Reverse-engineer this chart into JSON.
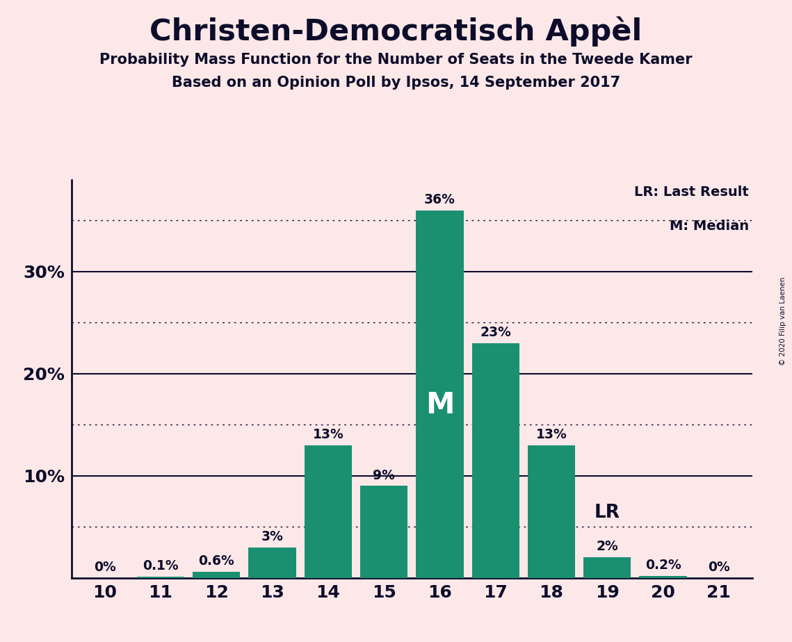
{
  "title": "Christen-Democratisch Appèl",
  "subtitle1": "Probability Mass Function for the Number of Seats in the Tweede Kamer",
  "subtitle2": "Based on an Opinion Poll by Ipsos, 14 September 2017",
  "copyright": "© 2020 Filip van Laenen",
  "seats": [
    10,
    11,
    12,
    13,
    14,
    15,
    16,
    17,
    18,
    19,
    20,
    21
  ],
  "probabilities": [
    0.0,
    0.1,
    0.6,
    3.0,
    13.0,
    9.0,
    36.0,
    23.0,
    13.0,
    2.0,
    0.2,
    0.0
  ],
  "labels": [
    "0%",
    "0.1%",
    "0.6%",
    "3%",
    "13%",
    "9%",
    "36%",
    "23%",
    "13%",
    "2%",
    "0.2%",
    "0%"
  ],
  "bar_color": "#1a9070",
  "background_color": "#fce8e8",
  "text_color": "#0d0d2b",
  "median_seat": 16,
  "last_result_seat": 19,
  "legend_lr": "LR: Last Result",
  "legend_m": "M: Median",
  "yticks": [
    0,
    10,
    20,
    30
  ],
  "ytick_labels": [
    "",
    "10%",
    "20%",
    "30%"
  ],
  "minor_yticks": [
    5,
    15,
    25,
    35
  ],
  "ylim": [
    0,
    39
  ]
}
